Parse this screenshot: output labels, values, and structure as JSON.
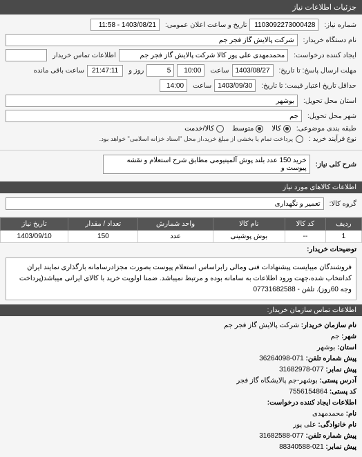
{
  "header": {
    "title": "جزئیات اطلاعات نیاز"
  },
  "fields": {
    "request_number_label": "شماره نیاز:",
    "request_number": "1103092273000428",
    "announce_date_label": "تاریخ و ساعت اعلان عمومی:",
    "announce_date": "1403/08/21 - 11:58",
    "buyer_org_label": "نام دستگاه خریدار:",
    "buyer_org": "شرکت پالایش گاز فجر جم",
    "requester_label": "ایجاد کننده درخواست:",
    "requester": "محمدمهدی علی پور کالا شرکت پالایش گاز فجر جم",
    "buyer_contact_label": "اطلاعات تماس خریدار",
    "deadline_label": "مهلت ارسال پاسخ: تا تاریخ:",
    "deadline_date": "1403/08/27",
    "time_label": "ساعت",
    "deadline_time": "10:00",
    "days_label": "روز و",
    "days_remaining": "5",
    "time_remaining": "21:47:11",
    "remain_suffix": "ساعت باقی مانده",
    "validity_label": "حداقل تاریخ اعتبار قیمت: تا تاریخ:",
    "validity_date": "1403/09/30",
    "validity_time": "14:00",
    "delivery_province_label": "استان محل تحویل:",
    "delivery_province": "بوشهر",
    "delivery_city_label": "شهر محل تحویل:",
    "delivery_city": "جم",
    "category_label": "طبقه بندی موضوعی:",
    "cat_goods": "کالا",
    "cat_medium": "متوسط",
    "cat_service": "کالا/خدمت",
    "purchase_type_label": "نوع فرآیند خرید :",
    "purchase_note": "پرداخت تمام یا بخشی از مبلغ خرید،از محل \"اسناد خزانه اسلامی\" خواهد بود.",
    "general_desc_label": "شرح کلی نیاز:",
    "general_desc": "خرید 150 عدد بلند پوش آلمینیومی مطابق شرح استعلام و نقشه پیوست و"
  },
  "goods_section": {
    "title": "اطلاعات کالاهای مورد نیاز",
    "group_label": "گروه کالا:",
    "group": "تعمیر و نگهداری"
  },
  "table": {
    "headers": [
      "ردیف",
      "کد کالا",
      "نام کالا",
      "واحد شمارش",
      "تعداد / مقدار",
      "تاریخ نیاز"
    ],
    "row": [
      "1",
      "--",
      "بوش پوشینی",
      "عدد",
      "150",
      "1403/09/10"
    ]
  },
  "buyer_desc": {
    "label": "توضیحات خریدار:",
    "text": "فروشندگان میبایست پیشنهادات فنی ومالی رابراساس استعلام پیوست بصورت مجزادرسامانه بارگذاری نمایند ایران کدانتخاب شده،جهت ورود اطلاعات به سامانه بوده و مرتبط نمیباشد. ضمنا اولویت خرید با کالای ایرانی میباشد(پرداخت وجه 60روز). تلفن - 07731682588"
  },
  "contact": {
    "title": "اطلاعات تماس سازمان خریدار:",
    "org_label": "نام سازمان خریدار:",
    "org": "شرکت پالایش گاز فجر جم",
    "city_label": "شهر:",
    "city": "جم",
    "province_label": "استان:",
    "province": "بوشهر",
    "phone_label": "پیش شماره تلفن:",
    "phone_prefix": "071-36264098",
    "fax_prefix_label": "پیش نمابر:",
    "fax_prefix": "077-31682978",
    "postal_address_label": "آدرس پستی:",
    "postal_address": "بوشهر-جم پالایشگاه گاز فجر",
    "postal_code_label": "کد پستی:",
    "postal_code": "7556154864",
    "requester_info_label": "اطلاعات ایجاد کننده درخواست:",
    "name_label": "نام:",
    "name": "محمدمهدی",
    "family_label": "نام خانوادگی:",
    "family": "علی پور",
    "phone2_label": "پیش شماره تلفن:",
    "phone2": "077-31682588",
    "fax2_label": "پیش نمابر:",
    "fax2": "021-88340588"
  }
}
